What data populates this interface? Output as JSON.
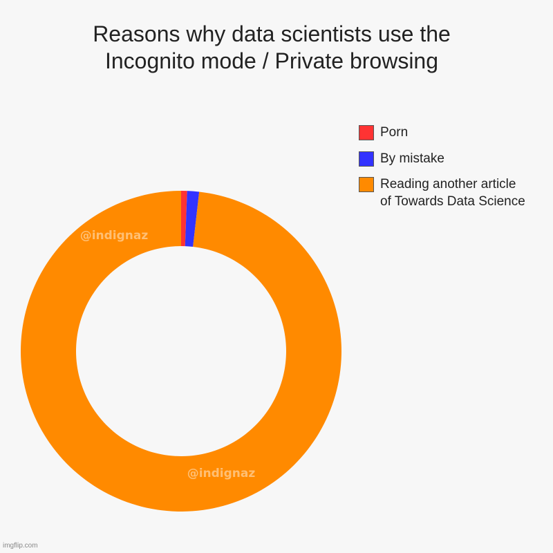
{
  "chart_data": {
    "type": "donut",
    "title": "Reasons why data scientists use the\nIncognito mode / Private browsing",
    "categories": [
      "Porn",
      "By mistake",
      "Reading another article\nof Towards Data Science"
    ],
    "values": [
      0.6,
      1.2,
      98.2
    ],
    "colors": [
      "#ff3333",
      "#3333ff",
      "#ff8a00"
    ],
    "legend": "top-right",
    "watermarks": [
      "@indignaz",
      "@indignaz"
    ],
    "footer": "imgflip.com"
  }
}
